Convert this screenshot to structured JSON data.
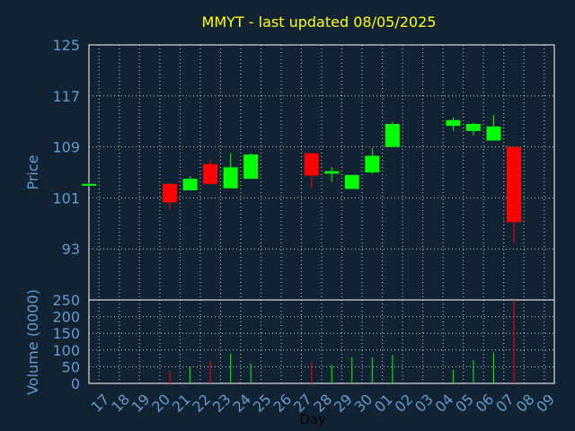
{
  "colors": {
    "background": "#112233",
    "title": "#ffff00",
    "axis_text": "#6699cc",
    "up": "#00ff00",
    "down": "#ff0000",
    "grid": "#ffffff"
  },
  "chart_data": {
    "type": "candlestick",
    "title": "MMYT - last updated 08/05/2025",
    "price_panel": {
      "ylabel": "Price",
      "ylim": [
        85,
        125
      ],
      "yticks": [
        93,
        101,
        109,
        117,
        125
      ],
      "grid": true
    },
    "volume_panel": {
      "ylabel": "Volume (0000)",
      "ylim": [
        0,
        250
      ],
      "yticks": [
        0,
        50,
        100,
        150,
        200,
        250
      ],
      "grid": true
    },
    "xlabel": "Day",
    "x_ticks": [
      "17",
      "18",
      "19",
      "20",
      "21",
      "22",
      "23",
      "24",
      "25",
      "26",
      "27",
      "28",
      "29",
      "30",
      "01",
      "02",
      "03",
      "04",
      "05",
      "06",
      "07",
      "08",
      "09"
    ],
    "candles": [
      {
        "day": "17",
        "open": 103.0,
        "high": 103.4,
        "low": 102.8,
        "close": 103.2,
        "volume": 0
      },
      {
        "day": "21",
        "open": 103.2,
        "high": 103.2,
        "low": 99.2,
        "close": 100.3,
        "volume": 38
      },
      {
        "day": "22",
        "open": 102.2,
        "high": 104.4,
        "low": 102.2,
        "close": 104.0,
        "volume": 50
      },
      {
        "day": "23",
        "open": 106.3,
        "high": 107.0,
        "low": 103.2,
        "close": 103.2,
        "volume": 68
      },
      {
        "day": "24",
        "open": 102.5,
        "high": 108.0,
        "low": 102.5,
        "close": 105.8,
        "volume": 90
      },
      {
        "day": "25",
        "open": 104.0,
        "high": 108.0,
        "low": 104.0,
        "close": 107.8,
        "volume": 60
      },
      {
        "day": "28",
        "open": 108.0,
        "high": 108.0,
        "low": 102.5,
        "close": 104.5,
        "volume": 62
      },
      {
        "day": "29",
        "open": 104.8,
        "high": 105.8,
        "low": 103.5,
        "close": 105.2,
        "volume": 55
      },
      {
        "day": "30",
        "open": 102.4,
        "high": 104.6,
        "low": 102.4,
        "close": 104.6,
        "volume": 78
      },
      {
        "day": "01",
        "open": 105.0,
        "high": 108.8,
        "low": 104.8,
        "close": 107.6,
        "volume": 78
      },
      {
        "day": "02",
        "open": 109.0,
        "high": 113.0,
        "low": 109.0,
        "close": 112.6,
        "volume": 85
      },
      {
        "day": "05",
        "open": 112.3,
        "high": 113.6,
        "low": 111.5,
        "close": 113.2,
        "volume": 40
      },
      {
        "day": "06",
        "open": 111.5,
        "high": 112.8,
        "low": 110.8,
        "close": 112.6,
        "volume": 70
      },
      {
        "day": "07",
        "open": 110.0,
        "high": 114.0,
        "low": 110.0,
        "close": 112.2,
        "volume": 92
      },
      {
        "day": "08",
        "open": 109.0,
        "high": 109.0,
        "low": 94.0,
        "close": 97.2,
        "volume": 250
      }
    ]
  }
}
